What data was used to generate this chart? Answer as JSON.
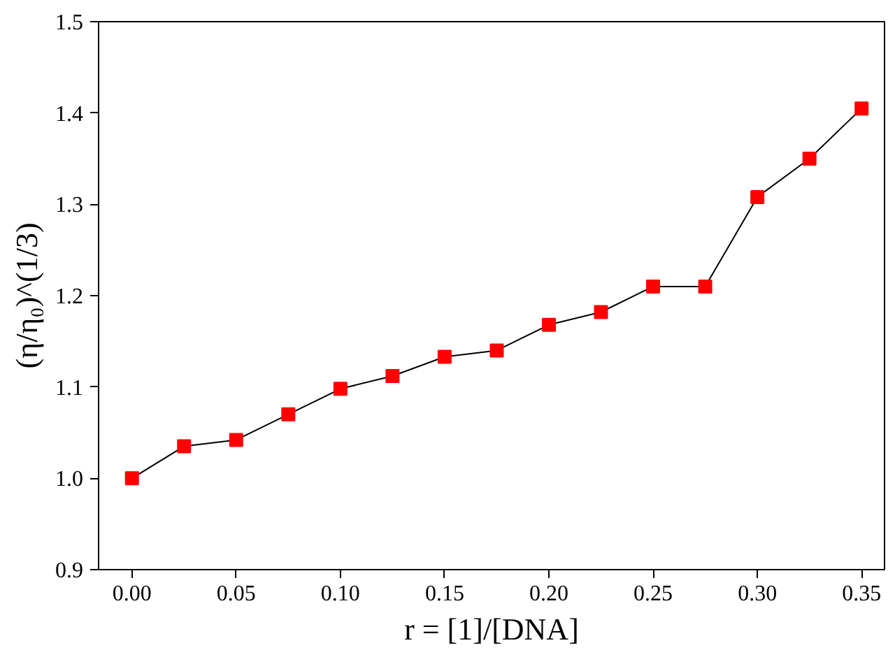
{
  "chart_data": {
    "type": "line",
    "xlabel": "r = [1]/[DNA]",
    "ylabel": "(η/η₀)^(1/3)",
    "x": [
      0,
      0.025,
      0.05,
      0.075,
      0.1,
      0.125,
      0.15,
      0.175,
      0.2,
      0.225,
      0.25,
      0.275,
      0.3,
      0.325,
      0.35
    ],
    "series": [
      {
        "color": "#ff0000",
        "values": [
          1.0,
          1.035,
          1.042,
          1.07,
          1.098,
          1.112,
          1.133,
          1.14,
          1.168,
          1.182,
          1.21,
          1.21,
          1.308,
          1.35,
          1.405
        ]
      }
    ],
    "xlim": [
      -0.016,
      0.361
    ],
    "ylim": [
      0.9,
      1.5
    ],
    "xticks": [
      {
        "value": 0,
        "label": "0.00"
      },
      0.05,
      {
        "value": 0.1,
        "label": "0.10"
      },
      0.15,
      {
        "value": 0.2,
        "label": "0.20"
      },
      0.25,
      {
        "value": 0.3,
        "label": "0.30"
      },
      0.35
    ],
    "yticks": [
      0.9,
      {
        "value": 1,
        "label": "1.0"
      },
      1.1,
      1.2,
      1.3,
      1.4,
      1.5
    ],
    "marker": "square",
    "line_style": "solid",
    "grid": false
  }
}
